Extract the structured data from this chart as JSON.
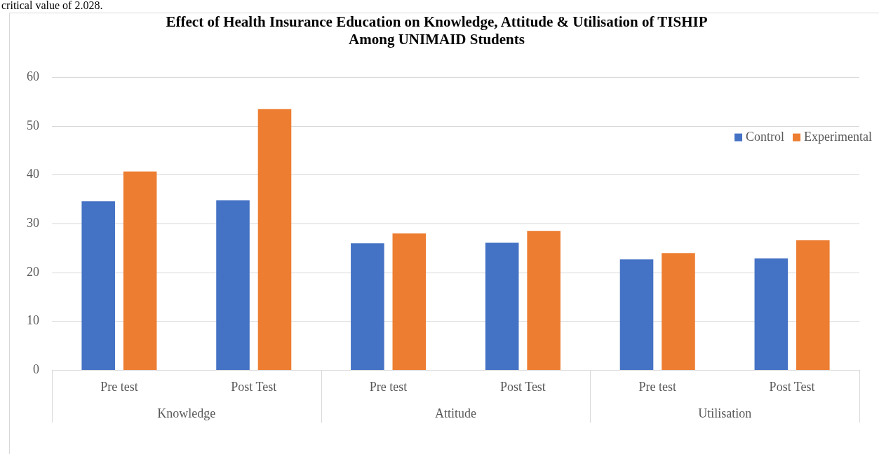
{
  "chart_data": {
    "type": "bar",
    "title": [
      "Effect of Health Insurance Education on Knowledge, Attitude & Utilisation of TISHIP",
      "Among UNIMAID Students"
    ],
    "categories": [
      "Pre test",
      "Post Test",
      "Pre test",
      "Post Test",
      "Pre test",
      "Post Test"
    ],
    "series": [
      {
        "name": "Control",
        "color": "#4472c4",
        "values": [
          34.6,
          34.8,
          26.0,
          26.1,
          22.7,
          22.9
        ]
      },
      {
        "name": "Experimental",
        "color": "#ed7d31",
        "values": [
          40.7,
          53.5,
          28.0,
          28.5,
          24.0,
          26.6
        ]
      }
    ],
    "ylim": [
      0,
      60
    ],
    "yticks": [
      0,
      10,
      20,
      30,
      40,
      50,
      60
    ],
    "grid": "y",
    "legend": "top right",
    "annotations": [
      "critical value of 2.028.",
      "Knowledge",
      "Attitude",
      "Utilisation"
    ]
  }
}
